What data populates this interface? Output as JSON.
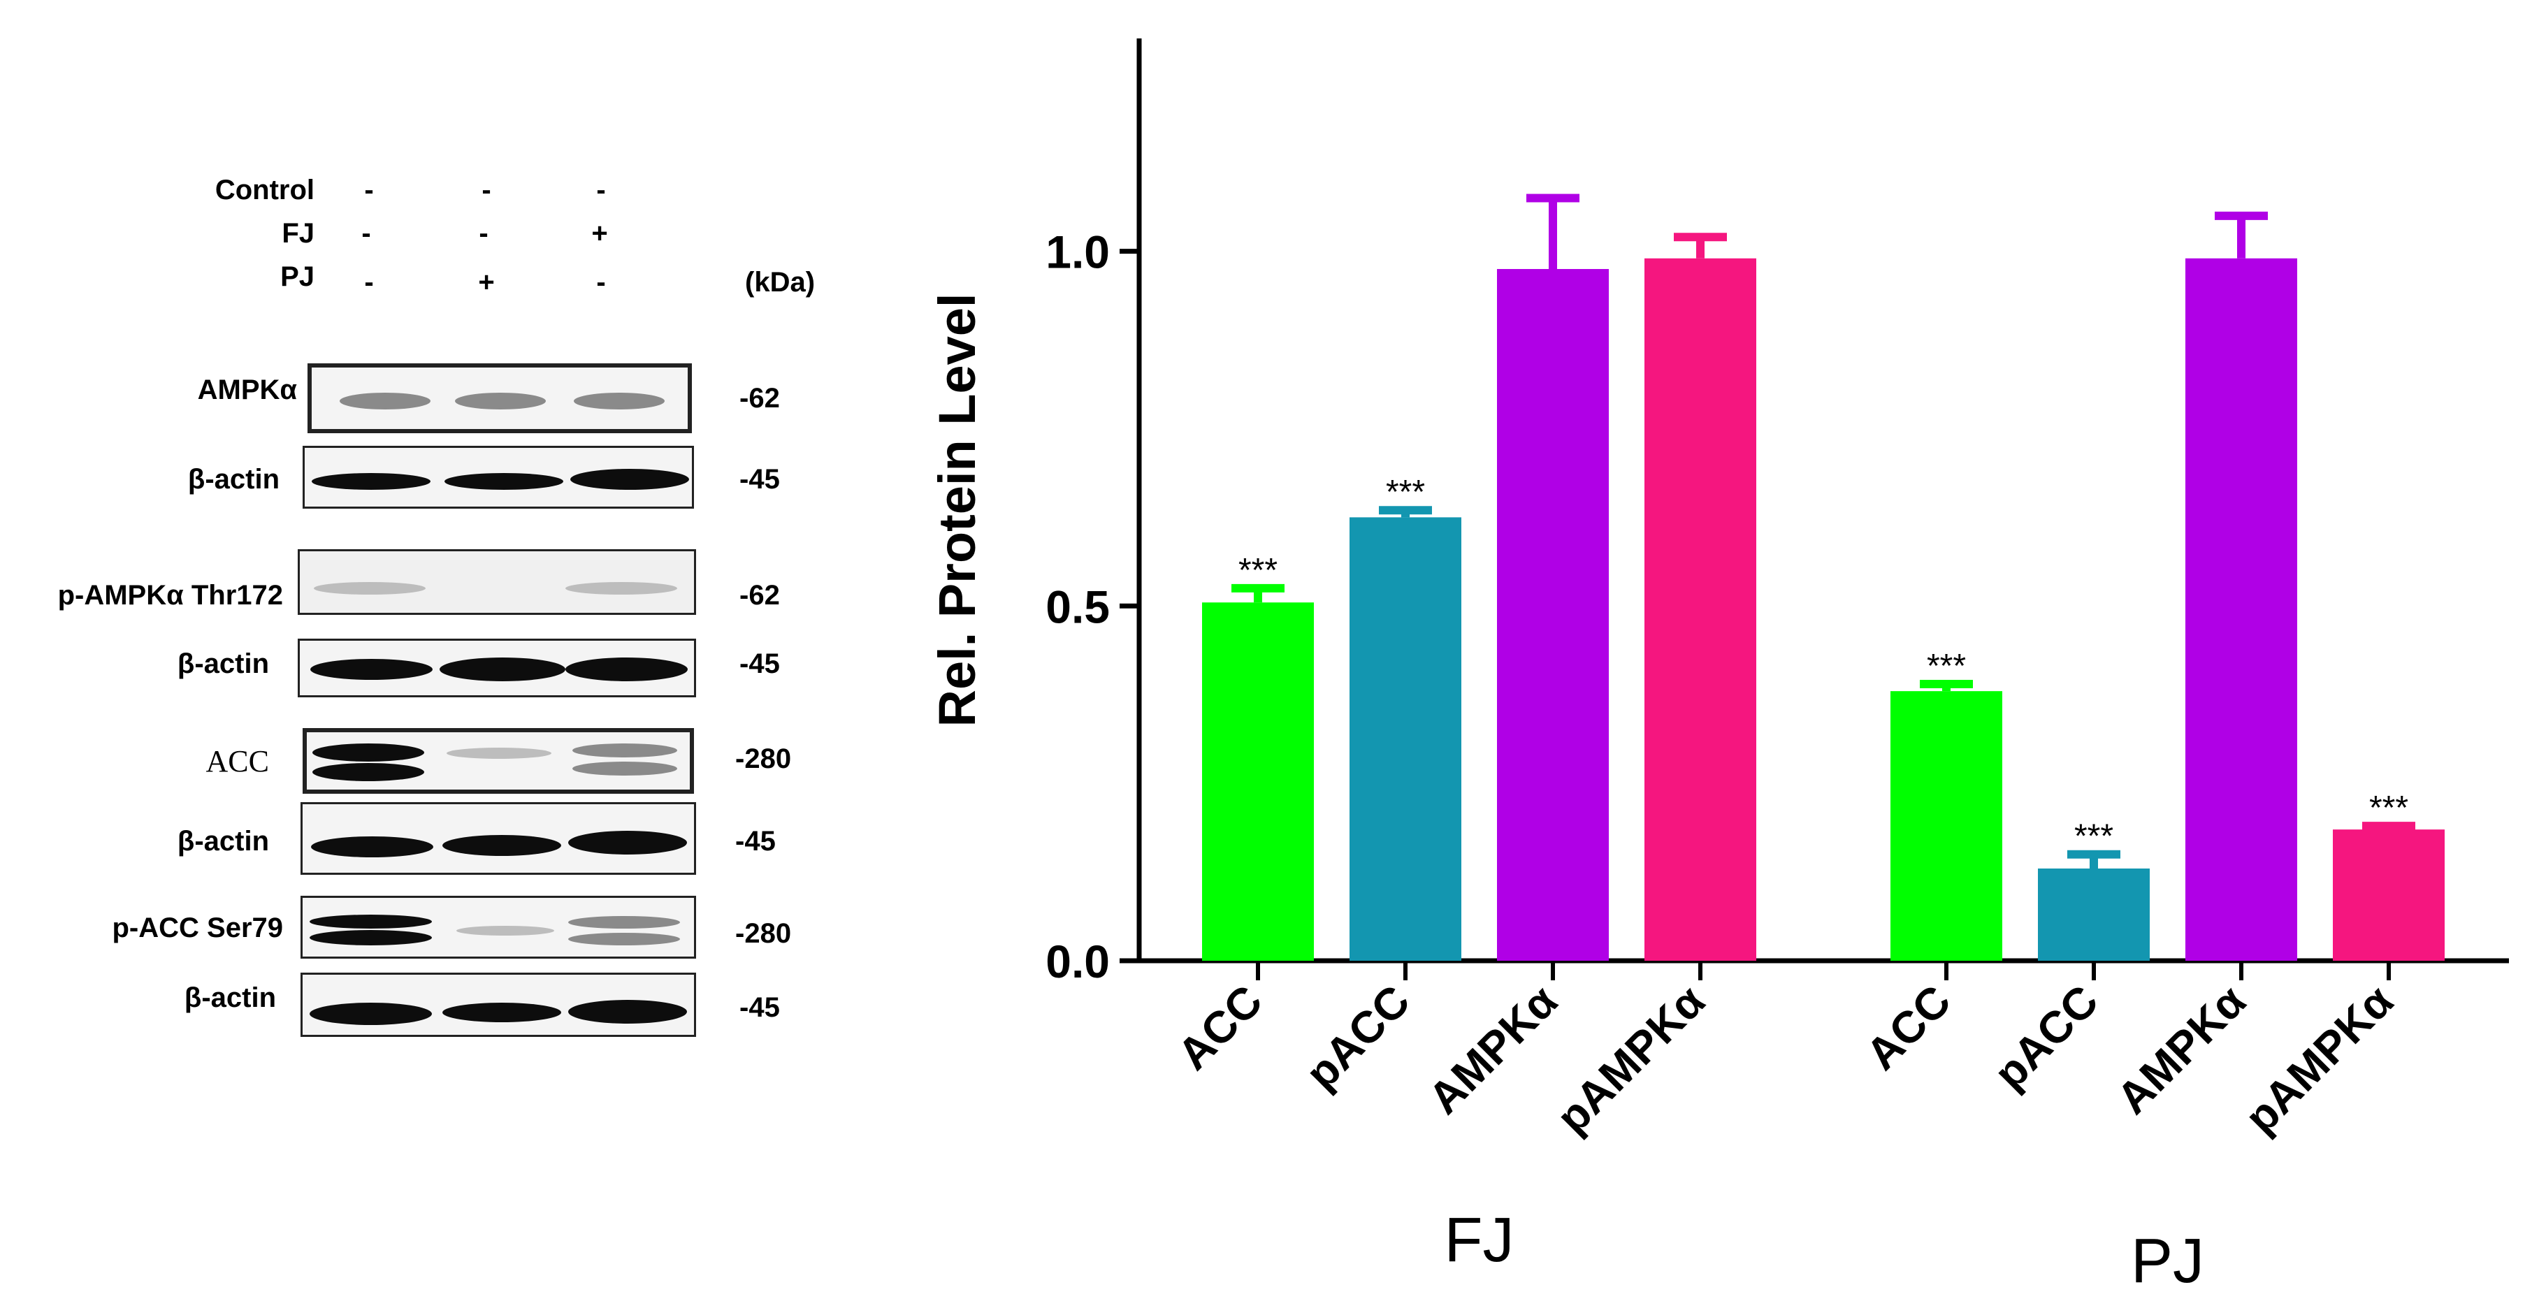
{
  "blot": {
    "conditions": [
      {
        "label": "Control",
        "marks": [
          "-",
          "-",
          "-"
        ]
      },
      {
        "label": "FJ",
        "marks": [
          "-",
          "-",
          "+"
        ]
      },
      {
        "label": "PJ",
        "marks": [
          "-",
          "+",
          "-"
        ]
      }
    ],
    "kda_header": "(kDa)",
    "rows": [
      {
        "label": "AMPKα",
        "kda": "-62"
      },
      {
        "label": "β-actin",
        "kda": "-45"
      },
      {
        "label": "p-AMPKα Thr172",
        "kda": "-62"
      },
      {
        "label": "β-actin",
        "kda": "-45"
      },
      {
        "label": "ACC",
        "kda": "-280"
      },
      {
        "label": "β-actin",
        "kda": "-45"
      },
      {
        "label": "p-ACC Ser79",
        "kda": "-280"
      },
      {
        "label": "β-actin",
        "kda": "-45"
      }
    ]
  },
  "chart_data": {
    "type": "bar",
    "ylabel": "Rel. Protein Level",
    "ylim": [
      0,
      1.3
    ],
    "yticks": [
      0.0,
      0.5,
      1.0
    ],
    "ytick_labels": [
      "0.0",
      "0.5",
      "1.0"
    ],
    "groups": [
      {
        "name": "FJ",
        "bars": [
          {
            "label": "ACC",
            "value": 0.505,
            "error": 0.02,
            "sig": "***",
            "color": "#00ff00"
          },
          {
            "label": "pACC",
            "value": 0.625,
            "error": 0.01,
            "sig": "***",
            "color": "#1396b0"
          },
          {
            "label": "AMPKα",
            "value": 0.975,
            "error": 0.1,
            "sig": "",
            "color": "#b000e6"
          },
          {
            "label": "pAMPKα",
            "value": 0.99,
            "error": 0.03,
            "sig": "",
            "color": "#f5167f"
          }
        ]
      },
      {
        "name": "PJ",
        "bars": [
          {
            "label": "ACC",
            "value": 0.38,
            "error": 0.01,
            "sig": "***",
            "color": "#00ff00"
          },
          {
            "label": "pACC",
            "value": 0.13,
            "error": 0.02,
            "sig": "***",
            "color": "#1396b0"
          },
          {
            "label": "AMPKα",
            "value": 0.99,
            "error": 0.06,
            "sig": "",
            "color": "#b000e6"
          },
          {
            "label": "pAMPKα",
            "value": 0.185,
            "error": 0.005,
            "sig": "***",
            "color": "#f5167f"
          }
        ]
      }
    ]
  }
}
